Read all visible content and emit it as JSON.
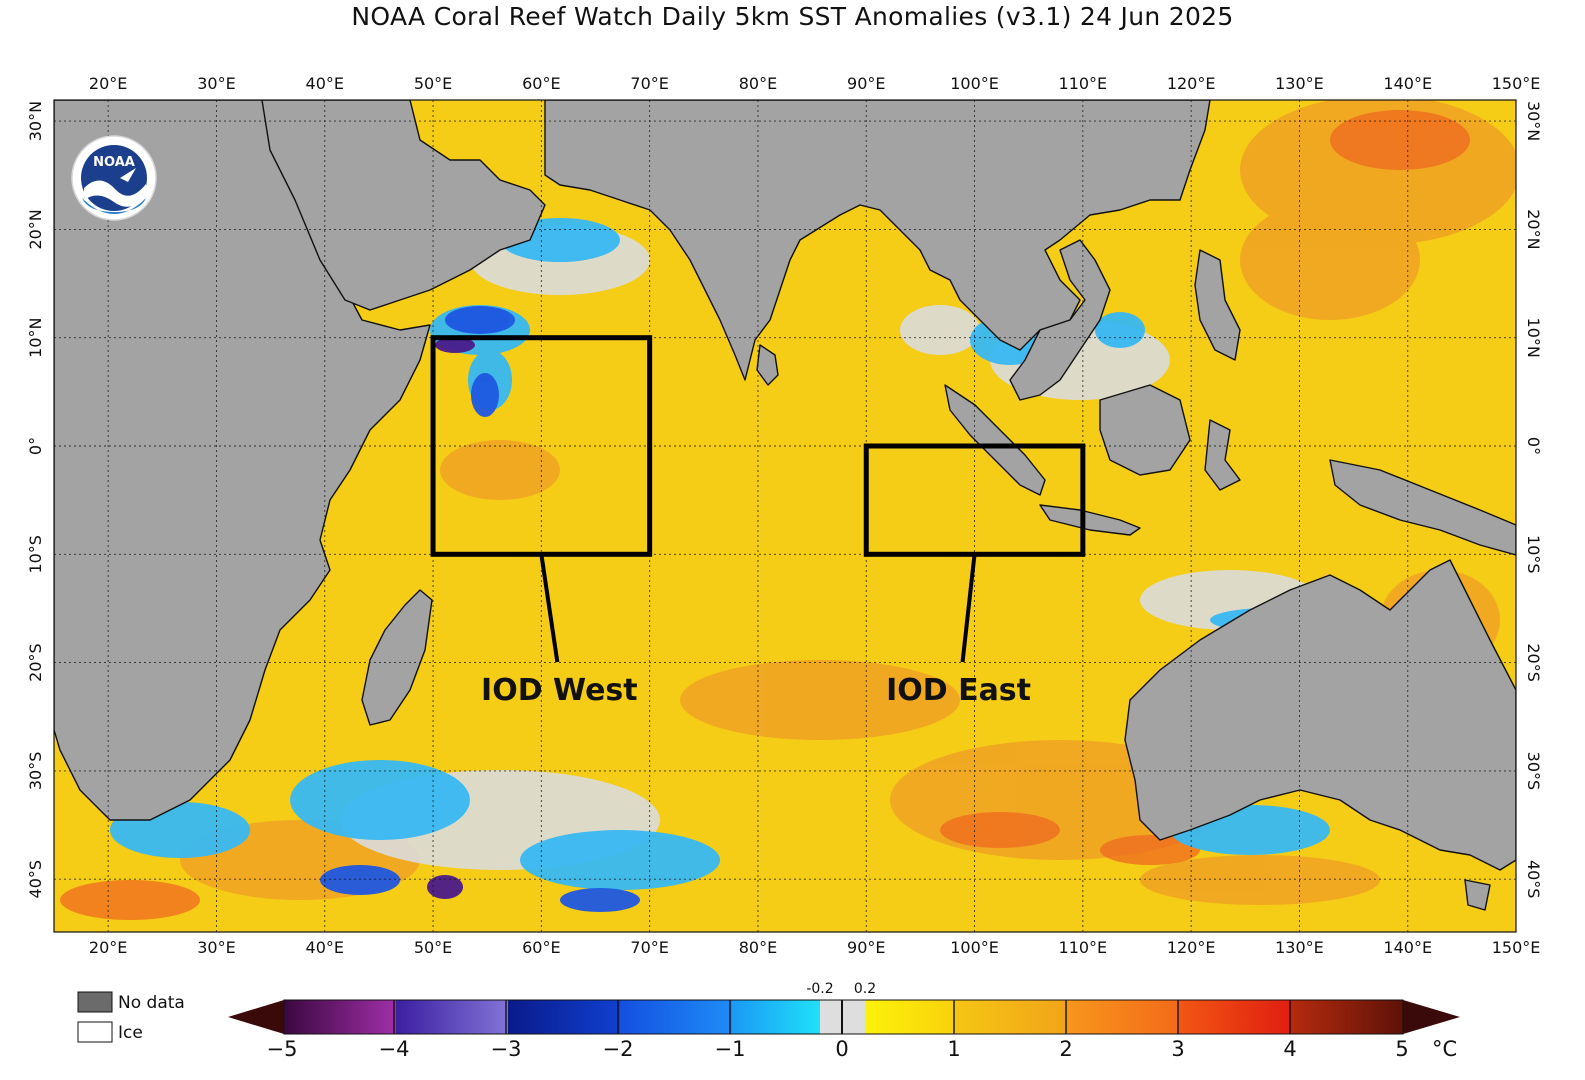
{
  "title": "NOAA Coral Reef Watch Daily 5km SST Anomalies  (v3.1)   24 Jun 2025",
  "logo": {
    "text": "NOAA"
  },
  "map": {
    "lon_ticks": [
      "20°E",
      "30°E",
      "40°E",
      "50°E",
      "60°E",
      "70°E",
      "80°E",
      "90°E",
      "100°E",
      "110°E",
      "120°E",
      "130°E",
      "140°E",
      "150°E"
    ],
    "lat_ticks": [
      "30°N",
      "20°N",
      "10°N",
      "0°",
      "10°S",
      "20°S",
      "30°S",
      "40°S"
    ],
    "colors": {
      "ocean": "#f5cc16",
      "land": "#a3a3a3",
      "cool": "#37b8f2",
      "neutral": "#dcdcdc",
      "warm": "#f0a224"
    }
  },
  "regions": [
    {
      "label": "IOD West",
      "lon": [
        50,
        70
      ],
      "lat": [
        -10,
        10
      ]
    },
    {
      "label": "IOD East",
      "lon": [
        90,
        110
      ],
      "lat": [
        -10,
        0
      ]
    }
  ],
  "legend": {
    "no_data_label": "No data",
    "ice_label": "Ice",
    "no_data_color": "#6b6b6b",
    "ice_color": "#ffffff"
  },
  "colorbar": {
    "unit": "°C",
    "ticks": [
      "−5",
      "−4",
      "−3",
      "−2",
      "−1",
      "0",
      "1",
      "2",
      "3",
      "4",
      "5"
    ],
    "small_ticks": [
      "-0.2",
      "0.2"
    ],
    "colors": {
      "under": "#3a0a0a",
      "over": "#3a0a0a",
      "m5": "#4e0d57",
      "m4": "#5f3ac4",
      "m3": "#0a1fa0",
      "m2": "#1d62f0",
      "m1": "#1ea3f5",
      "zero": "#dedede",
      "p0": "#fbe407",
      "p1": "#f4b515",
      "p2": "#f6841a",
      "p3": "#f03c14",
      "p4": "#a0240c"
    }
  }
}
